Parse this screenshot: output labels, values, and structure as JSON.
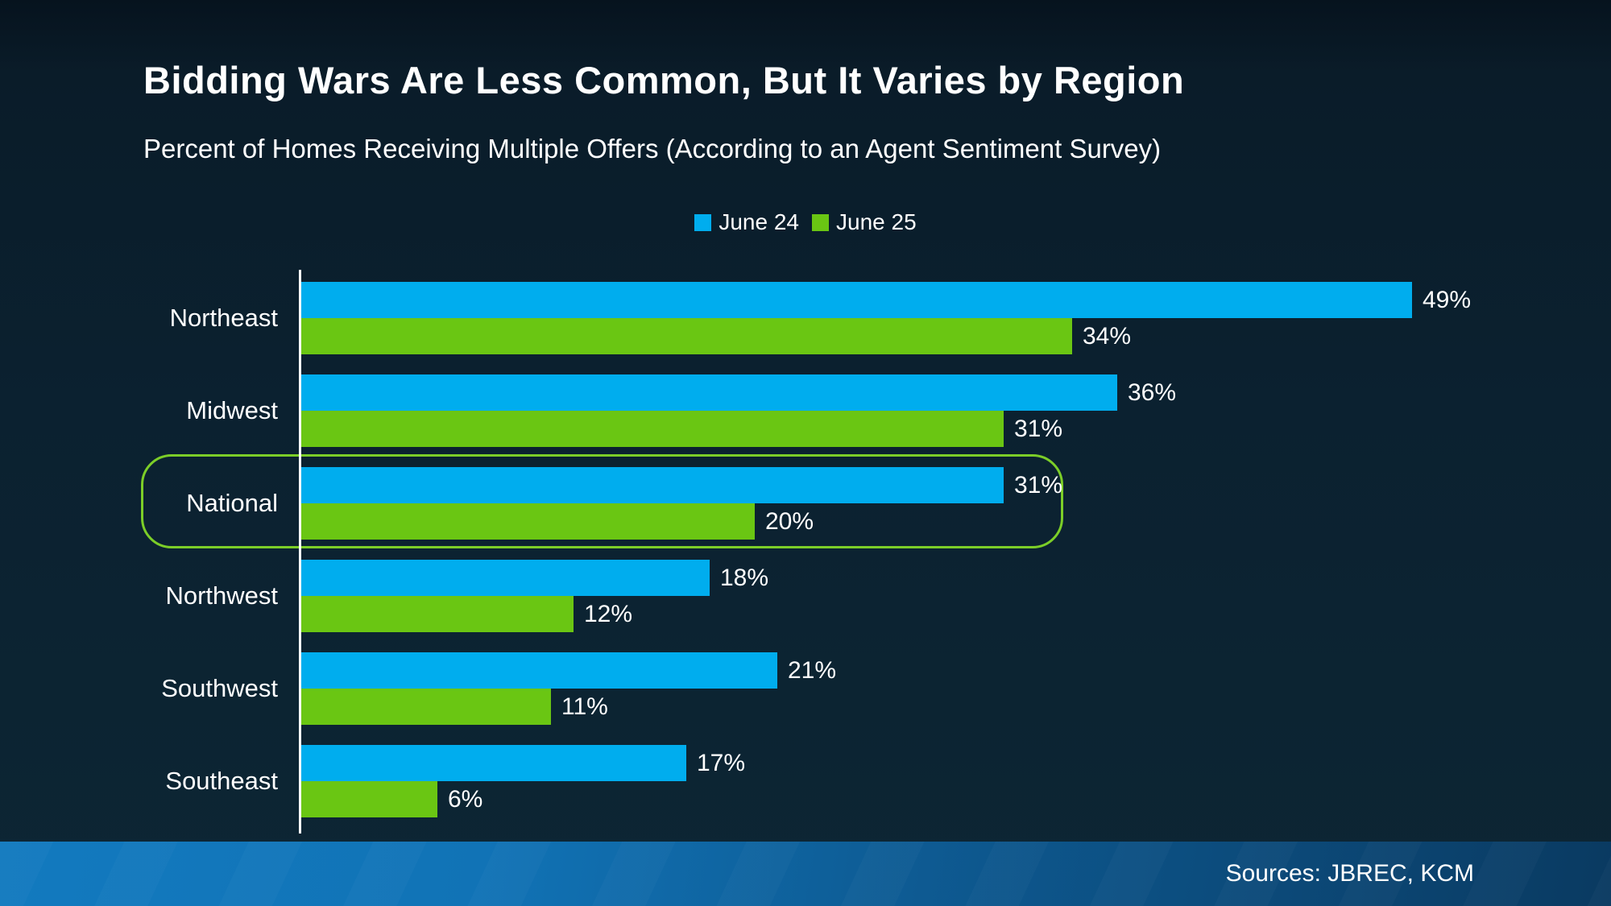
{
  "title": "Bidding Wars Are Less Common, But It Varies by Region",
  "subtitle": "Percent of Homes Receiving Multiple Offers (According to an Agent Sentiment Survey)",
  "legend": [
    {
      "label": "June 24",
      "color": "#00adee"
    },
    {
      "label": "June 25",
      "color": "#6ac613"
    }
  ],
  "colors": {
    "background_top": "#06131e",
    "background_bottom": "#0d2634",
    "june24_bar": "#00adee",
    "june25_bar": "#6ac613",
    "highlight_border": "#7cce28",
    "axis": "#ffffff",
    "footer_gradient_left": "#127abf",
    "footer_gradient_right": "#0a3a61",
    "text": "#ffffff"
  },
  "chart_data": {
    "type": "bar",
    "orientation": "horizontal",
    "title": "Percent of Homes Receiving Multiple Offers",
    "categories": [
      "Northeast",
      "Midwest",
      "National",
      "Northwest",
      "Southwest",
      "Southeast"
    ],
    "series": [
      {
        "name": "June 24",
        "color": "#00adee",
        "values": [
          49,
          36,
          31,
          18,
          21,
          17
        ]
      },
      {
        "name": "June 25",
        "color": "#6ac613",
        "values": [
          34,
          31,
          20,
          12,
          11,
          6
        ]
      }
    ],
    "value_labels": [
      [
        "49%",
        "34%"
      ],
      [
        "36%",
        "31%"
      ],
      [
        "31%",
        "20%"
      ],
      [
        "18%",
        "12%"
      ],
      [
        "21%",
        "11%"
      ],
      [
        "17%",
        "6%"
      ]
    ],
    "value_suffix": "%",
    "xlim": [
      0,
      50
    ],
    "grid": false,
    "legend_position": "top-center",
    "highlighted_category": "National"
  },
  "footer": {
    "sources": "Sources: JBREC, KCM"
  }
}
